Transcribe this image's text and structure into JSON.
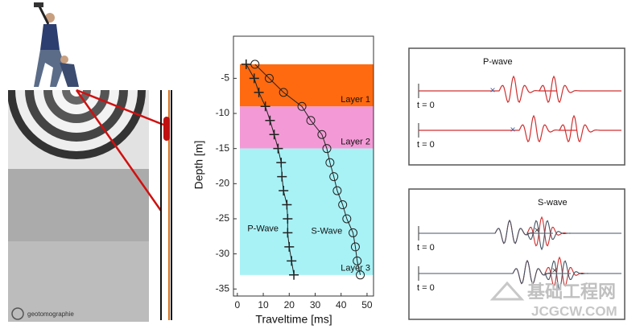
{
  "illustration": {
    "credit": "geotomographie"
  },
  "chart_data": {
    "type": "line",
    "x_label": "Traveltime [ms]",
    "y_label": "Depth [m]",
    "xlim": [
      -1.5,
      52.5
    ],
    "xticks": [
      0,
      10,
      20,
      30,
      40,
      50
    ],
    "ylim": [
      -36,
      1
    ],
    "yticks": [
      -35,
      -30,
      -25,
      -20,
      -15,
      -10,
      -5
    ],
    "bands": [
      {
        "label": "Layer 1",
        "from": -3,
        "to": -9,
        "color": "#ff6a10"
      },
      {
        "label": "Layer 2",
        "from": -9,
        "to": -15,
        "color": "#f39ad6"
      },
      {
        "label": "Layer 3",
        "from": -15,
        "to": -33,
        "color": "#a8f2f6"
      }
    ],
    "series": [
      {
        "name": "S-Wave",
        "marker": "o",
        "color": "#222222",
        "x": [
          6.8,
          12.3,
          17.8,
          24.9,
          28.3,
          32.6,
          34.5,
          35.7,
          37.2,
          38.5,
          40.6,
          42.2,
          44.6,
          45.5,
          46.2,
          47.4
        ],
        "values": [
          -3,
          -5,
          -7,
          -9,
          -11,
          -13,
          -15,
          -17,
          -19,
          -21,
          -23,
          -25,
          -27,
          -29,
          -31,
          -33
        ]
      },
      {
        "name": "P-Wave",
        "marker": "+",
        "color": "#222222",
        "x": [
          3.4,
          6.5,
          8.3,
          10.8,
          12.6,
          14.2,
          15.7,
          16.9,
          17.2,
          17.8,
          19.1,
          19.4,
          19.4,
          20.0,
          20.9,
          21.8
        ],
        "values": [
          -3,
          -5,
          -7,
          -9,
          -11,
          -13,
          -15,
          -17,
          -19,
          -21,
          -23,
          -25,
          -27,
          -29,
          -31,
          -33
        ]
      }
    ]
  },
  "waveforms": [
    {
      "title": "P-wave",
      "traces": [
        "t = 0",
        "t = 0"
      ]
    },
    {
      "title": "S-wave",
      "traces": [
        "t = 0",
        "t = 0"
      ]
    }
  ],
  "watermark": {
    "name": "基础工程网",
    "url": "JCGCW.COM"
  }
}
